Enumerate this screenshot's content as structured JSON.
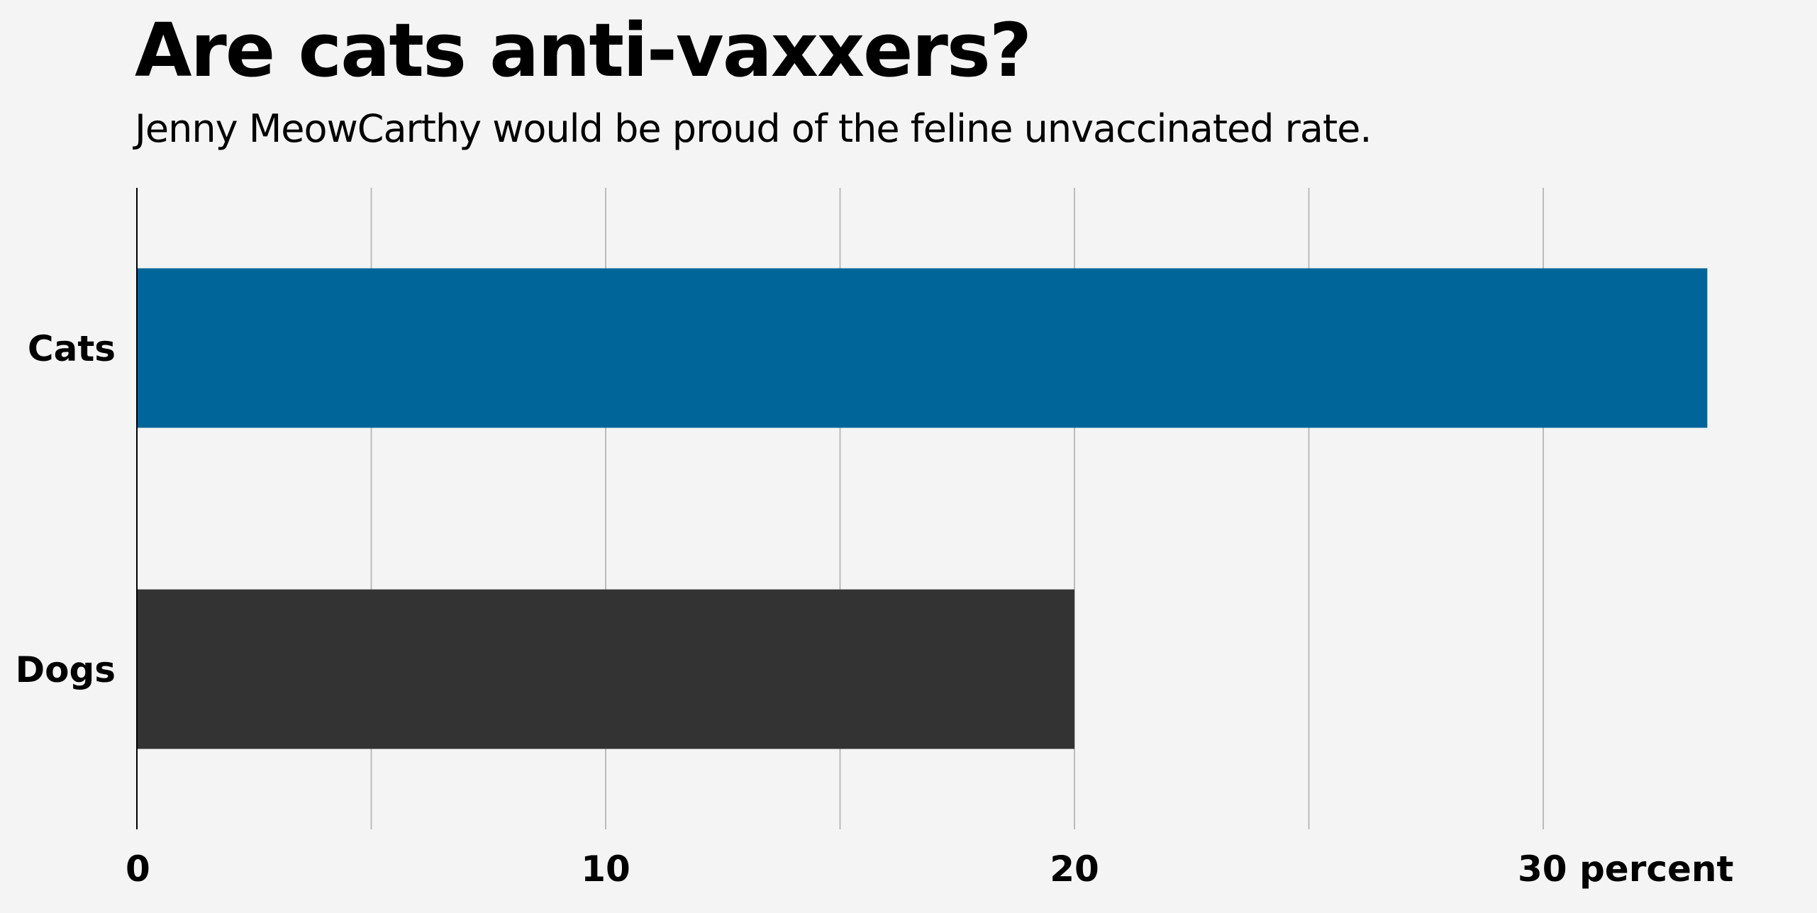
{
  "chart_data": {
    "type": "bar",
    "orientation": "horizontal",
    "title": "Are cats anti-vaxxers?",
    "subtitle": "Jenny MeowCarthy would be proud of the feline unvaccinated rate.",
    "categories": [
      "Cats",
      "Dogs"
    ],
    "values": [
      33.5,
      20
    ],
    "colors": [
      "#006699",
      "#333333"
    ],
    "xlim": [
      0,
      35
    ],
    "x_ticks": [
      {
        "value": 0,
        "label": "0"
      },
      {
        "value": 10,
        "label": "10"
      },
      {
        "value": 20,
        "label": "20"
      },
      {
        "value": 30,
        "label": "30 percent"
      }
    ],
    "x_gridlines": [
      5,
      10,
      15,
      20,
      25,
      30
    ],
    "grid": true,
    "legend": "none",
    "background_color": "#f4f4f4",
    "grid_color": "#bbbbbb"
  }
}
